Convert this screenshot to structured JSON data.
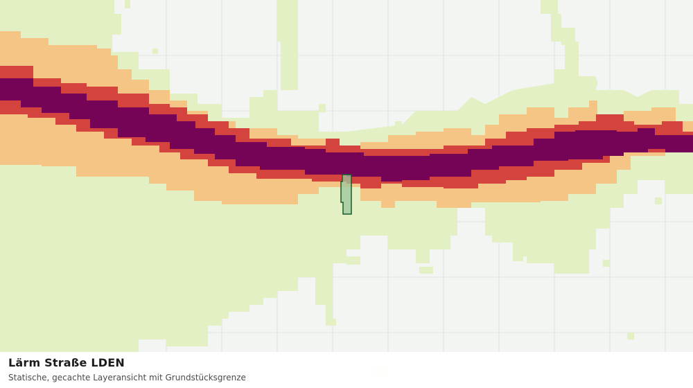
{
  "layer": {
    "title": "Lärm Straße LDEN",
    "subtitle": "Statische, gecachte Layeransicht mit Grundstücksgrenze"
  },
  "colors": {
    "background": "#f3f5f3",
    "grid": "#e1e3e1",
    "noise_low": "#e3f0c4",
    "noise_medium": "#f5c585",
    "noise_high": "#d5433f",
    "noise_highest": "#750457",
    "parcel_fill": "#9cc59c",
    "parcel_stroke": "#1a5a28"
  },
  "noise_bands": [
    "low",
    "medium",
    "high",
    "highest"
  ],
  "parcel": {
    "label": "Grundstücksgrenze"
  }
}
